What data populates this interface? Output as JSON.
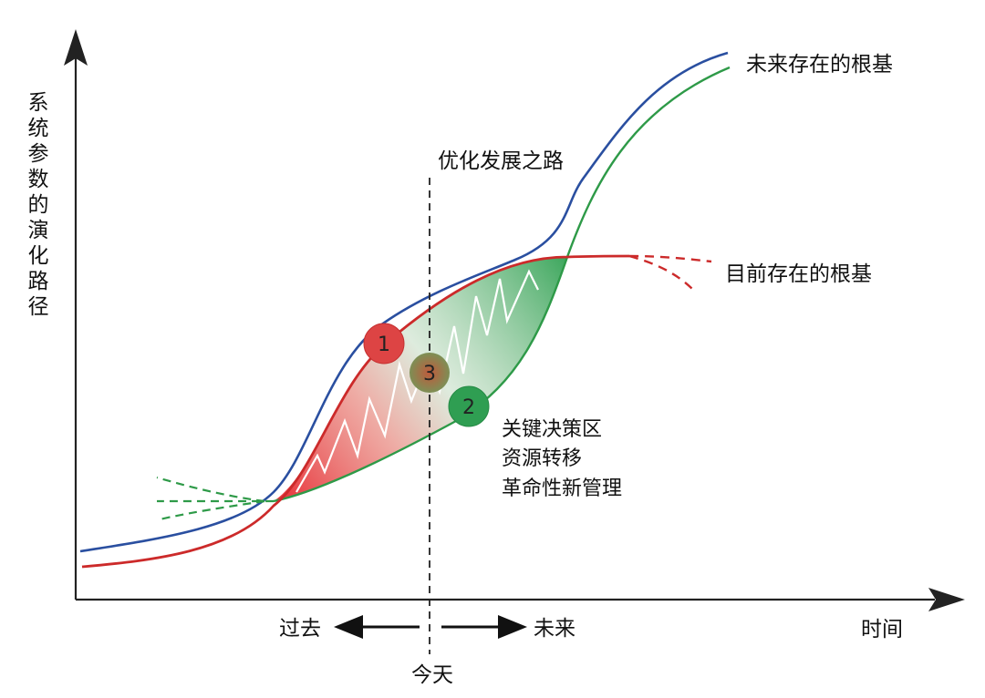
{
  "y_axis": {
    "label": "系统参数的演化路径"
  },
  "x_axis": {
    "label": "时间"
  },
  "curves": {
    "future": {
      "label": "未来存在的根基",
      "colors": [
        "#2a4fa0",
        "#2e9a48"
      ]
    },
    "current": {
      "label": "目前存在的根基",
      "color": "#cc2a2a"
    }
  },
  "optimized_path": {
    "label": "优化发展之路"
  },
  "today": {
    "label": "今天"
  },
  "direction": {
    "past": "过去",
    "future": "未来"
  },
  "points": [
    {
      "number": "1",
      "color": "#dd4444"
    },
    {
      "number": "2",
      "color": "#2f9e52"
    },
    {
      "number": "3",
      "color": "#9a6a4a"
    }
  ],
  "decision_zone": {
    "lines": [
      "关键决策区",
      "资源转移",
      "革命性新管理"
    ]
  }
}
